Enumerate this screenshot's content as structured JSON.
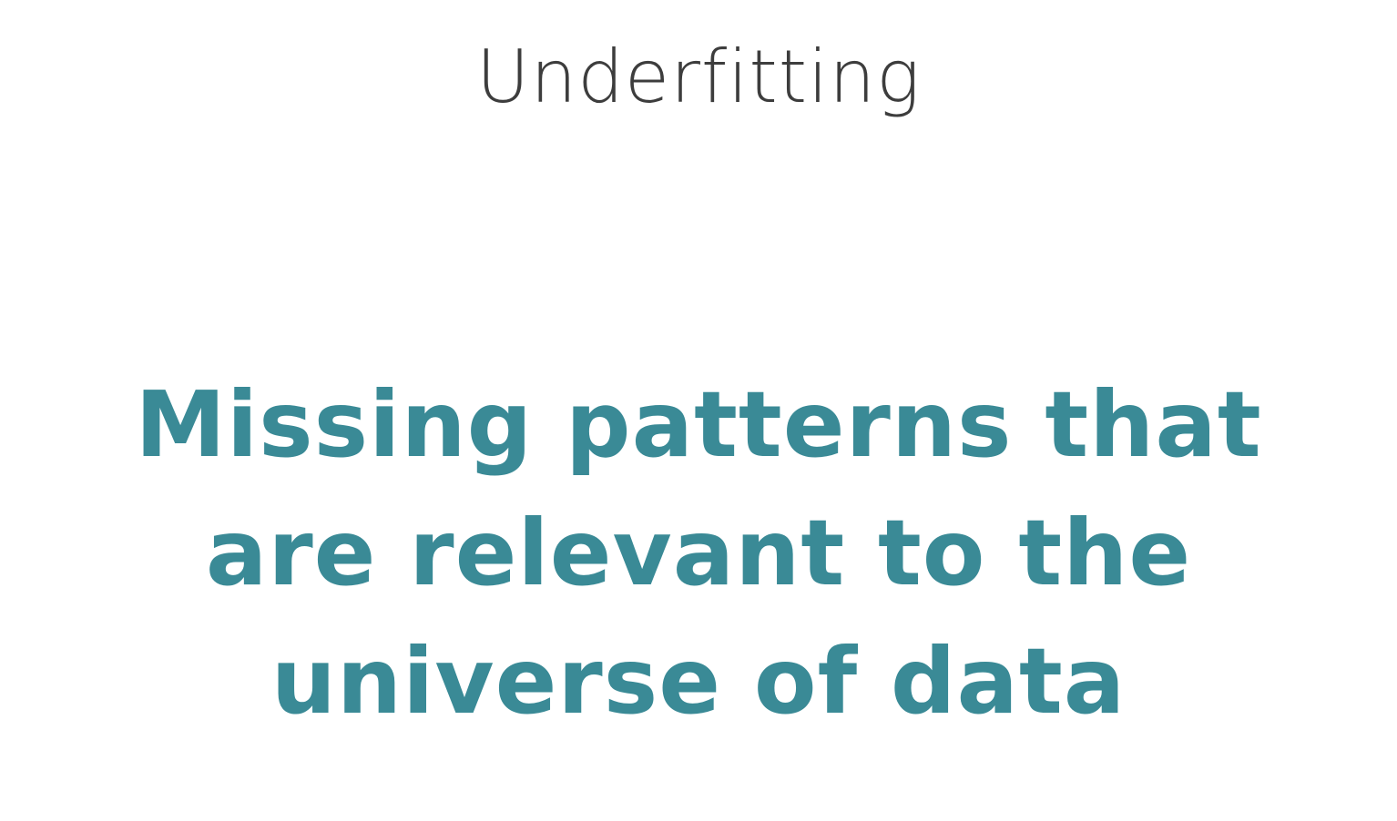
{
  "slide": {
    "title": "Underfitting",
    "body_lines": [
      "Missing patterns that",
      "are relevant to the",
      "universe of data"
    ]
  },
  "colors": {
    "background": "#ffffff",
    "title": "#3d3d3d",
    "accent_text": "#3a8a96"
  }
}
